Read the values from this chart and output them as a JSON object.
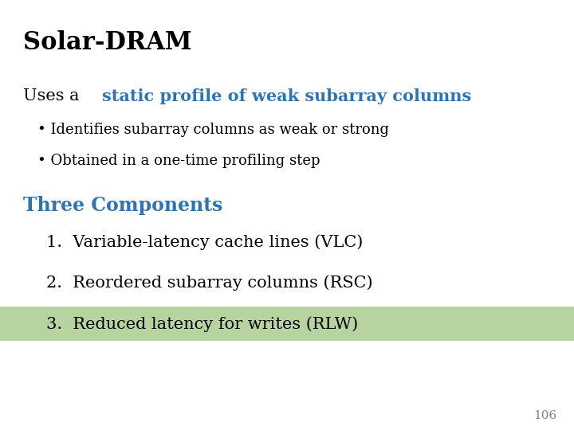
{
  "title": "Solar-DRAM",
  "title_color": "#000000",
  "title_fontsize": 22,
  "title_bold": true,
  "bg_color": "#ffffff",
  "line1_prefix": "Uses a ",
  "line1_highlight": "static profile of weak subarray columns",
  "line1_prefix_color": "#000000",
  "line1_highlight_color": "#2E74B5",
  "line1_fontsize": 15,
  "line1_highlight_bold": true,
  "bullets": [
    "• Identifies subarray columns as weak or strong",
    "• Obtained in a one-time profiling step"
  ],
  "bullet_color": "#000000",
  "bullet_fontsize": 13,
  "section_title": "Three Components",
  "section_title_color": "#2E74B5",
  "section_title_fontsize": 17,
  "section_title_bold": true,
  "items": [
    "1.  Variable-latency cache lines (VLC)",
    "2.  Reordered subarray columns (RSC)",
    "3.  Reduced latency for writes (RLW)"
  ],
  "item_fontsize": 15,
  "item_color": "#000000",
  "highlight_item_index": 2,
  "highlight_bg_color": "#B7D4A0",
  "page_number": "106",
  "page_number_color": "#808080",
  "page_number_fontsize": 11
}
